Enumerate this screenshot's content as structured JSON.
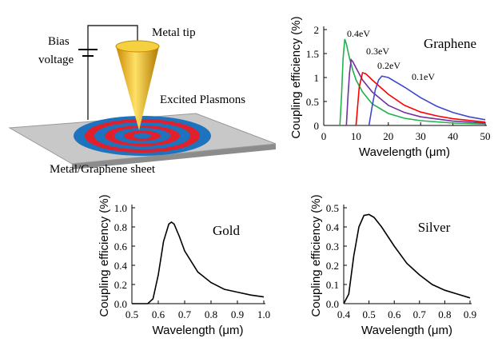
{
  "diagram": {
    "bias": "Bias",
    "voltage": "voltage",
    "tip": "Metal tip",
    "plasmons": "Excited Plasmons",
    "sheet": "Metal/Graphene sheet"
  },
  "chart_data": [
    {
      "type": "line",
      "annotation": "Graphene",
      "x_label": "Wavelength (μm)",
      "y_label": "Coupling efficiency (%)",
      "xlim": [
        0,
        50
      ],
      "xticks": [
        0,
        10,
        20,
        30,
        40,
        50
      ],
      "ylim": [
        0,
        2
      ],
      "yticks": [
        0,
        0.5,
        1,
        1.5,
        2
      ],
      "series": [
        {
          "name": "0.4eV",
          "color": "#22b14c",
          "x": [
            5,
            5.5,
            6,
            6.5,
            7,
            8,
            9,
            10,
            12,
            15,
            20,
            25,
            30,
            40,
            50
          ],
          "values": [
            0,
            0.6,
            1.4,
            1.8,
            1.7,
            1.4,
            1.15,
            0.95,
            0.7,
            0.45,
            0.25,
            0.15,
            0.1,
            0.05,
            0.03
          ]
        },
        {
          "name": "0.3eV",
          "color": "#7030a0",
          "x": [
            7,
            7.5,
            8,
            8.5,
            9,
            10,
            12,
            15,
            20,
            25,
            30,
            40,
            50
          ],
          "values": [
            0,
            0.6,
            1.1,
            1.37,
            1.33,
            1.2,
            0.95,
            0.7,
            0.42,
            0.27,
            0.18,
            0.09,
            0.05
          ]
        },
        {
          "name": "0.2eV",
          "color": "#ff0000",
          "x": [
            10,
            10.5,
            11,
            12,
            13,
            15,
            20,
            25,
            30,
            35,
            40,
            50
          ],
          "values": [
            0,
            0.4,
            0.8,
            1.1,
            1.08,
            0.95,
            0.65,
            0.42,
            0.28,
            0.2,
            0.14,
            0.07
          ]
        },
        {
          "name": "0.1eV",
          "color": "#3f48cc",
          "x": [
            14,
            15,
            16,
            17,
            18,
            20,
            25,
            30,
            35,
            40,
            45,
            50
          ],
          "values": [
            0,
            0.4,
            0.75,
            0.95,
            1.03,
            1.0,
            0.8,
            0.58,
            0.4,
            0.27,
            0.18,
            0.12
          ]
        }
      ]
    },
    {
      "type": "line",
      "annotation": "Gold",
      "x_label": "Wavelength (μm)",
      "y_label": "Coupling efficiency (%)",
      "xlim": [
        0.5,
        1
      ],
      "xticks": [
        0.5,
        0.6,
        0.7,
        0.8,
        0.9,
        {
          "value": 1,
          "label": "1.0"
        }
      ],
      "ylim": [
        0,
        1
      ],
      "yticks": [
        {
          "value": 0,
          "label": "0.0"
        },
        0.2,
        0.4,
        0.6,
        0.8,
        {
          "value": 1,
          "label": "1.0"
        }
      ],
      "series": [
        {
          "color": "#000000",
          "x": [
            0.5,
            0.56,
            0.58,
            0.6,
            0.62,
            0.64,
            0.65,
            0.66,
            0.68,
            0.7,
            0.75,
            0.8,
            0.85,
            0.9,
            0.95,
            1
          ],
          "values": [
            0,
            0,
            0.05,
            0.3,
            0.65,
            0.83,
            0.85,
            0.83,
            0.7,
            0.55,
            0.33,
            0.22,
            0.15,
            0.12,
            0.09,
            0.07
          ]
        }
      ]
    },
    {
      "type": "line",
      "annotation": "Silver",
      "x_label": "Wavelength (μm)",
      "y_label": "Coupling efficiency (%)",
      "xlim": [
        0.4,
        0.9
      ],
      "xticks": [
        0.4,
        0.5,
        0.6,
        0.7,
        0.8,
        0.9
      ],
      "ylim": [
        0,
        0.5
      ],
      "yticks": [
        {
          "value": 0,
          "label": "0.0"
        },
        0.1,
        0.2,
        0.3,
        0.4,
        0.5
      ],
      "series": [
        {
          "color": "#000000",
          "x": [
            0.4,
            0.42,
            0.44,
            0.46,
            0.48,
            0.5,
            0.52,
            0.55,
            0.6,
            0.65,
            0.7,
            0.75,
            0.8,
            0.85,
            0.9
          ],
          "values": [
            0,
            0.05,
            0.25,
            0.4,
            0.46,
            0.465,
            0.45,
            0.4,
            0.3,
            0.21,
            0.15,
            0.1,
            0.07,
            0.05,
            0.03
          ]
        }
      ]
    }
  ]
}
